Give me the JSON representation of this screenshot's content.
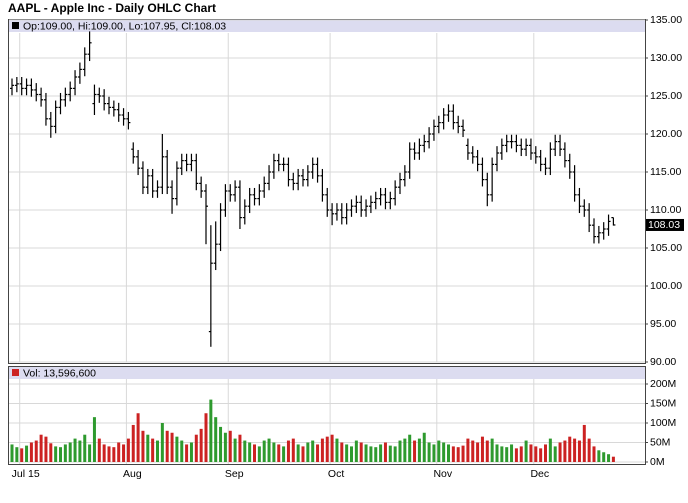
{
  "chart_data": {
    "type": "ohlc",
    "title": "AAPL - Apple Inc - Daily OHLC Chart",
    "price_header": "Op:109.00, Hi:109.00, Lo:107.95, Cl:108.03",
    "last_label": "108.03",
    "volume_header": "Vol: 13,596,600",
    "categories": [
      null,
      null,
      "Jul 15",
      null,
      null,
      null,
      null,
      null,
      null,
      null,
      null,
      null,
      null,
      null,
      null,
      null,
      null,
      null,
      null,
      null,
      null,
      null,
      null,
      null,
      "Aug",
      null,
      null,
      null,
      null,
      null,
      null,
      null,
      null,
      null,
      null,
      null,
      null,
      null,
      null,
      null,
      null,
      null,
      null,
      null,
      null,
      "Sep",
      null,
      null,
      null,
      null,
      null,
      null,
      null,
      null,
      null,
      null,
      null,
      null,
      null,
      null,
      null,
      null,
      null,
      null,
      null,
      null,
      "Oct",
      null,
      null,
      null,
      null,
      null,
      null,
      null,
      null,
      null,
      null,
      null,
      null,
      null,
      null,
      null,
      null,
      null,
      null,
      null,
      null,
      null,
      "Nov",
      null,
      null,
      null,
      null,
      null,
      null,
      null,
      null,
      null,
      null,
      null,
      null,
      null,
      null,
      null,
      null,
      null,
      null,
      null,
      "Dec",
      null,
      null,
      null,
      null,
      null,
      null,
      null,
      null,
      null,
      null,
      null,
      null,
      null,
      null,
      null,
      null
    ],
    "open": [
      126.0,
      126.4,
      126.6,
      126.0,
      126.4,
      125.8,
      125.2,
      124.5,
      122.0,
      121.0,
      123.5,
      124.5,
      125.2,
      126.0,
      127.5,
      128.5,
      130.5,
      124.0,
      125.2,
      125.0,
      124.0,
      123.5,
      123.2,
      122.5,
      122.0,
      118.0,
      117.0,
      115.5,
      113.0,
      114.5,
      112.5,
      113.0,
      117.0,
      113.0,
      111.5,
      115.5,
      116.5,
      116.0,
      116.5,
      113.5,
      112.5,
      94.0,
      103.0,
      105.5,
      110.0,
      112.5,
      112.0,
      113.0,
      109.0,
      110.5,
      112.0,
      111.5,
      112.5,
      113.5,
      115.0,
      116.5,
      116.0,
      116.0,
      114.0,
      113.5,
      114.5,
      114.0,
      115.0,
      116.0,
      114.5,
      112.0,
      110.0,
      109.5,
      110.0,
      109.0,
      110.0,
      110.5,
      111.0,
      110.0,
      110.5,
      111.0,
      111.5,
      112.0,
      111.0,
      111.5,
      113.0,
      114.0,
      115.0,
      118.0,
      117.5,
      118.5,
      119.0,
      120.0,
      121.0,
      121.5,
      122.5,
      123.0,
      121.5,
      121.0,
      118.5,
      117.5,
      117.0,
      116.0,
      114.0,
      112.0,
      116.0,
      117.5,
      118.5,
      119.0,
      119.0,
      118.5,
      118.0,
      118.5,
      117.5,
      117.0,
      116.0,
      115.5,
      118.0,
      119.0,
      118.0,
      116.5,
      115.0,
      112.0,
      110.5,
      110.0,
      108.0,
      106.5,
      107.0,
      107.5,
      109.0
    ],
    "high": [
      127.3,
      127.5,
      127.5,
      127.3,
      127.3,
      126.7,
      126.1,
      125.4,
      122.9,
      124.4,
      125.4,
      126.1,
      126.9,
      128.4,
      129.4,
      131.4,
      133.5,
      126.5,
      126.1,
      125.9,
      124.9,
      124.4,
      124.1,
      123.4,
      122.9,
      118.9,
      117.9,
      116.4,
      115.4,
      115.4,
      113.9,
      120.0,
      117.9,
      113.9,
      116.4,
      117.4,
      117.4,
      117.4,
      117.4,
      114.4,
      113.4,
      108.0,
      108.5,
      110.9,
      113.4,
      113.4,
      113.9,
      113.9,
      111.4,
      112.9,
      112.9,
      113.4,
      114.4,
      115.9,
      117.4,
      117.4,
      116.9,
      116.9,
      114.9,
      115.4,
      115.4,
      115.9,
      116.9,
      116.9,
      115.4,
      112.9,
      110.9,
      110.9,
      110.9,
      110.9,
      111.4,
      111.9,
      111.9,
      111.4,
      111.9,
      112.4,
      112.9,
      112.9,
      112.4,
      113.9,
      114.9,
      115.9,
      118.9,
      118.9,
      119.4,
      119.9,
      120.9,
      121.9,
      122.4,
      123.4,
      123.9,
      123.9,
      122.4,
      121.9,
      119.4,
      118.4,
      117.9,
      116.9,
      114.9,
      116.9,
      118.4,
      119.4,
      119.9,
      119.9,
      119.9,
      119.4,
      119.4,
      119.4,
      118.4,
      117.9,
      116.9,
      118.9,
      119.9,
      119.9,
      118.9,
      117.4,
      115.9,
      112.9,
      111.4,
      110.9,
      108.9,
      107.9,
      108.4,
      109.4,
      109.0
    ],
    "low": [
      125.1,
      125.5,
      125.1,
      125.1,
      124.9,
      124.3,
      123.6,
      121.1,
      119.5,
      120.1,
      122.6,
      123.6,
      124.3,
      125.1,
      126.6,
      127.6,
      129.6,
      122.5,
      124.1,
      123.1,
      122.6,
      122.3,
      121.6,
      121.1,
      120.6,
      116.1,
      114.6,
      112.1,
      112.1,
      111.6,
      111.6,
      112.1,
      112.1,
      109.5,
      110.6,
      114.6,
      115.1,
      115.1,
      112.6,
      111.6,
      105.5,
      92.0,
      102.1,
      104.6,
      109.1,
      111.1,
      111.1,
      107.5,
      108.1,
      109.6,
      110.6,
      110.6,
      111.6,
      112.6,
      114.1,
      115.1,
      115.1,
      113.1,
      112.6,
      112.6,
      113.1,
      113.1,
      114.1,
      113.6,
      111.1,
      109.1,
      108.0,
      108.6,
      108.1,
      108.1,
      109.1,
      109.6,
      109.1,
      109.1,
      109.6,
      110.1,
      110.6,
      110.1,
      110.1,
      110.6,
      112.1,
      113.1,
      114.1,
      116.6,
      116.6,
      117.6,
      118.1,
      119.1,
      120.1,
      120.6,
      121.6,
      120.6,
      120.1,
      119.6,
      116.6,
      116.1,
      115.1,
      113.1,
      110.5,
      111.1,
      115.1,
      116.6,
      117.6,
      118.1,
      117.6,
      117.1,
      117.1,
      116.6,
      116.1,
      115.1,
      114.6,
      114.6,
      117.1,
      117.1,
      115.6,
      114.1,
      111.1,
      109.6,
      109.1,
      107.1,
      105.6,
      105.6,
      106.1,
      106.6,
      107.95
    ],
    "close": [
      126.4,
      126.6,
      126.0,
      126.4,
      125.8,
      125.2,
      124.5,
      122.0,
      121.0,
      123.5,
      124.5,
      125.2,
      126.0,
      127.5,
      128.5,
      130.5,
      132.0,
      125.2,
      125.0,
      124.0,
      123.5,
      123.2,
      122.5,
      122.0,
      121.5,
      117.0,
      115.5,
      113.0,
      114.5,
      112.5,
      113.0,
      117.0,
      113.0,
      111.5,
      115.5,
      116.5,
      116.0,
      116.5,
      113.5,
      112.5,
      110.5,
      103.0,
      105.5,
      110.0,
      112.5,
      112.0,
      113.0,
      109.0,
      110.5,
      112.0,
      111.5,
      112.5,
      113.5,
      115.0,
      116.5,
      116.0,
      116.0,
      114.0,
      113.5,
      114.5,
      114.0,
      115.0,
      116.0,
      114.5,
      112.0,
      110.0,
      109.5,
      110.0,
      109.0,
      110.0,
      110.5,
      111.0,
      110.0,
      110.5,
      111.0,
      111.5,
      112.0,
      111.0,
      111.5,
      113.0,
      114.0,
      115.0,
      118.0,
      117.5,
      118.5,
      119.0,
      120.0,
      121.0,
      121.5,
      122.5,
      123.0,
      121.5,
      121.0,
      120.5,
      117.5,
      117.0,
      116.0,
      114.0,
      112.0,
      116.0,
      117.5,
      118.5,
      119.0,
      119.0,
      118.5,
      118.0,
      118.5,
      117.5,
      117.0,
      116.0,
      115.5,
      118.0,
      119.0,
      118.0,
      116.5,
      115.0,
      112.0,
      110.5,
      110.0,
      108.0,
      106.5,
      107.0,
      107.5,
      108.5,
      108.03
    ],
    "volume": [
      45,
      38,
      35,
      42,
      50,
      55,
      70,
      65,
      48,
      40,
      38,
      45,
      50,
      60,
      55,
      70,
      45,
      115,
      60,
      45,
      40,
      38,
      50,
      45,
      60,
      95,
      125,
      80,
      70,
      60,
      55,
      100,
      80,
      75,
      65,
      55,
      45,
      50,
      70,
      85,
      125,
      160,
      115,
      90,
      75,
      80,
      60,
      70,
      55,
      50,
      45,
      40,
      55,
      60,
      50,
      45,
      40,
      55,
      60,
      45,
      40,
      50,
      55,
      45,
      60,
      65,
      70,
      60,
      50,
      45,
      40,
      55,
      50,
      45,
      40,
      38,
      45,
      50,
      42,
      40,
      55,
      60,
      70,
      55,
      60,
      75,
      50,
      45,
      55,
      50,
      45,
      40,
      38,
      42,
      60,
      55,
      50,
      65,
      55,
      60,
      45,
      40,
      38,
      45,
      35,
      40,
      55,
      45,
      40,
      35,
      45,
      60,
      40,
      50,
      55,
      65,
      60,
      55,
      95,
      60,
      40,
      30,
      25,
      20,
      13.5966
    ],
    "ylim": [
      90,
      135
    ],
    "yticks": [
      {
        "value": 90,
        "label": "90.00"
      },
      {
        "value": 95,
        "label": "95.00"
      },
      {
        "value": 100,
        "label": "100.00"
      },
      {
        "value": 105,
        "label": "105.00"
      },
      {
        "value": 110,
        "label": "110.00"
      },
      {
        "value": 115,
        "label": "115.00"
      },
      {
        "value": 120,
        "label": "120.00"
      },
      {
        "value": 125,
        "label": "125.00"
      },
      {
        "value": 130,
        "label": "130.00"
      },
      {
        "value": 135,
        "label": "135.00"
      }
    ],
    "vlim": [
      0,
      200
    ],
    "vticks": [
      {
        "value": 0,
        "label": "0M"
      },
      {
        "value": 50,
        "label": "50M"
      },
      {
        "value": 100,
        "label": "100M"
      },
      {
        "value": 150,
        "label": "150M"
      },
      {
        "value": 200,
        "label": "200M"
      }
    ],
    "grid": true,
    "bar_color": "#000000",
    "up_color": "#2e9a2e",
    "down_color": "#cc2222"
  }
}
